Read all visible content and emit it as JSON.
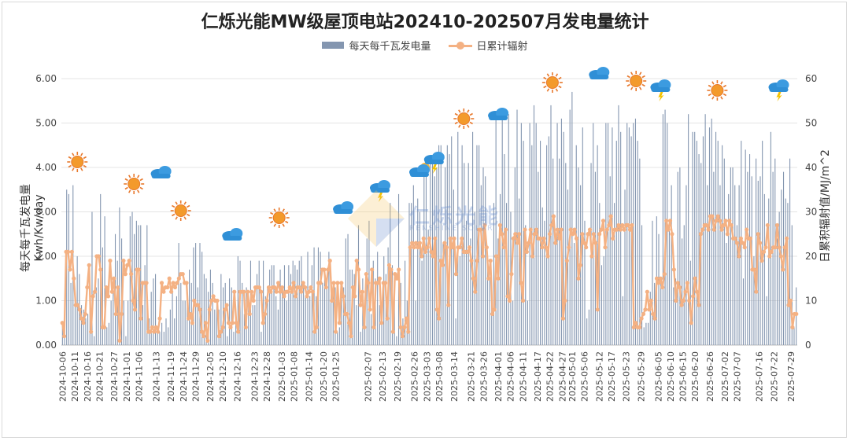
{
  "chart_data": {
    "type": "bar+line",
    "title": "仁烁光能MW级屋顶电站202410-202507月发电量统计",
    "legend": [
      "每天每千瓦发电量",
      "日累计辐射"
    ],
    "legend_position": "top",
    "ylabel_left": "每天每千瓦发电量 Kwh/Kw/day",
    "ylabel_left_line1": "每天每千瓦发电量",
    "ylabel_left_line2": "Kwh/Kw/day",
    "ylabel_right": "日累积辐射值/MJ/m^2",
    "ylim_left": [
      0,
      6
    ],
    "ylim_right": [
      0,
      60
    ],
    "yticks_left": [
      "0.00",
      "1.00",
      "2.00",
      "3.00",
      "4.00",
      "5.00",
      "6.00"
    ],
    "yticks_right": [
      "0",
      "10",
      "20",
      "30",
      "40",
      "50",
      "60"
    ],
    "x_start": "2024-10-06",
    "x_end": "2025-07-31",
    "x_tick_labels": [
      "2024-10-06",
      "2024-10-11",
      "2024-10-16",
      "2024-10-21",
      "2024-10-27",
      "2024-11-01",
      "2024-11-06",
      "2024-11-13",
      "2024-11-19",
      "2024-11-24",
      "2024-11-29",
      "2024-12-05",
      "2024-12-10",
      "2024-12-16",
      "2024-12-23",
      "2024-12-28",
      "2025-01-03",
      "2025-01-08",
      "2025-01-14",
      "2025-01-20",
      "2025-01-25",
      "2025-02-07",
      "2025-02-13",
      "2025-02-19",
      "2025-02-26",
      "2025-03-03",
      "2025-03-08",
      "2025-03-14",
      "2025-03-21",
      "2025-03-26",
      "2025-04-01",
      "2025-04-06",
      "2025-04-11",
      "2025-04-17",
      "2025-04-22",
      "2025-04-27",
      "2025-05-01",
      "2025-05-06",
      "2025-05-12",
      "2025-05-17",
      "2025-05-23",
      "2025-05-29",
      "2025-06-05",
      "2025-06-10",
      "2025-06-15",
      "2025-06-20",
      "2025-06-26",
      "2025-07-02",
      "2025-07-07",
      "2025-07-16",
      "2025-07-22",
      "2025-07-29"
    ],
    "bar_series": {
      "name": "每天每千瓦发电量",
      "color": "#8496b0",
      "values": [
        0.5,
        0.3,
        3.5,
        3.4,
        1.4,
        3.6,
        1.0,
        2.0,
        1.6,
        0.9,
        0.8,
        0.6,
        0.7,
        1.1,
        3.0,
        0.2,
        1.3,
        1.5,
        3.4,
        2.2,
        2.9,
        0.4,
        0.5,
        1.0,
        1.2,
        2.5,
        1.9,
        3.1,
        2.4,
        1.0,
        0.2,
        1.0,
        2.9,
        3.0,
        2.5,
        2.8,
        2.7,
        2.7,
        0.9,
        1.8,
        2.7,
        0.6,
        1.2,
        1.5,
        1.6,
        0.3,
        0.3,
        0.5,
        0.3,
        0.6,
        0.4,
        0.8,
        1.3,
        0.6,
        1.1,
        2.3,
        1.4,
        1.0,
        1.0,
        1.2,
        1.7,
        1.4,
        2.2,
        2.3,
        1.3,
        2.3,
        2.1,
        1.6,
        1.5,
        1.2,
        1.7,
        1.4,
        0.8,
        1.0,
        0.8,
        1.6,
        1.3,
        1.4,
        0.2,
        1.5,
        1.3,
        0.3,
        0.5,
        2.0,
        1.9,
        1.4,
        0.7,
        1.3,
        1.0,
        1.9,
        0.9,
        0.9,
        1.6,
        1.9,
        0.3,
        1.9,
        1.1,
        1.3,
        1.7,
        1.8,
        1.8,
        1.1,
        0.8,
        1.7,
        1.3,
        1.8,
        1.0,
        1.8,
        1.6,
        1.9,
        1.8,
        1.7,
        1.9,
        2.0,
        1.4,
        1.1,
        2.1,
        1.1,
        1.8,
        2.2,
        1.1,
        2.2,
        2.1,
        1.4,
        1.6,
        1.4,
        2.1,
        1.3,
        1.2,
        1.3,
        0.3,
        0.4,
        1.2,
        1.3,
        2.4,
        2.5,
        1.7,
        1.7,
        1.6,
        0.9,
        2.7,
        0.3,
        1.5,
        0.6,
        2.4,
        2.8,
        0.7,
        1.9,
        1.5,
        2.1,
        0.9,
        0.6,
        2.0,
        1.6,
        2.2,
        3.2,
        1.8,
        1.5,
        0.2,
        3.4,
        1.4,
        0.6,
        1.9,
        1.0,
        3.2,
        3.2,
        3.6,
        1.0,
        3.3,
        3.0,
        1.9,
        3.8,
        3.9,
        2.6,
        4.1,
        4.2,
        3.8,
        4.0,
        4.5,
        4.5,
        2.3,
        4.0,
        4.5,
        4.3,
        4.7,
        3.5,
        0.6,
        4.8,
        2.0,
        4.5,
        4.1,
        2.8,
        4.1,
        2.4,
        4.8,
        3.0,
        4.5,
        4.5,
        3.6,
        4.0,
        3.8,
        2.0,
        1.5,
        1.2,
        3.2,
        5.2,
        2.4,
        3.4,
        5.1,
        4.3,
        3.2,
        5.2,
        3.0,
        1.0,
        4.0,
        5.3,
        3.3,
        5.0,
        4.6,
        2.7,
        1.0,
        5.0,
        4.5,
        5.4,
        5.0,
        3.9,
        4.6,
        3.1,
        2.8,
        4.5,
        4.7,
        5.4,
        4.2,
        2.4,
        5.0,
        4.2,
        5.1,
        4.8,
        4.1,
        3.5,
        5.3,
        5.7,
        2.3,
        4.5,
        4.0,
        3.6,
        4.9,
        2.8,
        0.6,
        0.8,
        4.1,
        5.0,
        3.9,
        4.5,
        3.2,
        1.8,
        2.0,
        5.0,
        5.0,
        3.8,
        4.9,
        3.2,
        4.6,
        5.4,
        4.8,
        1.1,
        3.5,
        5.0,
        4.9,
        4.7,
        5.0,
        5.1,
        4.6,
        4.2,
        2.7,
        0.4,
        0.5,
        0.5,
        1.2,
        2.8,
        1.4,
        2.9,
        2.5,
        1.5,
        5.2,
        5.3,
        5.0,
        2.7,
        3.6,
        1.3,
        1.5,
        3.9,
        4.0,
        2.4,
        2.7,
        3.6,
        5.2,
        1.9,
        4.8,
        4.8,
        4.6,
        4.3,
        4.1,
        4.7,
        5.2,
        3.6,
        4.9,
        5.1,
        3.9,
        4.8,
        4.6,
        3.6,
        4.5,
        4.2,
        2.3,
        3.4,
        4.0,
        4.0,
        3.6,
        2.7,
        3.6,
        4.6,
        1.5,
        4.4,
        3.9,
        4.3,
        3.8,
        2.0,
        4.2,
        3.7,
        3.8,
        4.6,
        3.4,
        1.1,
        3.3,
        4.8,
        3.9,
        4.2,
        2.4,
        3.0,
        3.5,
        3.9,
        3.3,
        3.2,
        4.2,
        2.7,
        0.4,
        1.3
      ]
    },
    "line_series": {
      "name": "日累计辐射",
      "color": "#f4b183",
      "values": [
        5,
        2,
        21,
        21,
        17,
        21,
        15,
        9,
        9,
        8,
        6,
        5,
        7,
        13,
        18,
        3,
        11,
        12,
        20,
        20,
        17,
        4,
        4,
        13,
        11,
        19,
        12,
        15,
        7,
        13,
        1,
        7,
        19,
        16,
        18,
        19,
        16,
        10,
        8,
        17,
        17,
        6,
        14,
        14,
        14,
        3,
        3,
        4,
        3,
        4,
        3,
        6,
        14,
        12,
        13,
        13,
        15,
        12,
        14,
        13,
        14,
        15,
        16,
        16,
        14,
        14,
        6,
        7,
        5,
        10,
        9,
        9,
        8,
        3,
        2,
        5,
        1,
        8,
        10,
        11,
        10,
        10,
        2,
        3,
        4,
        8,
        9,
        5,
        4,
        5,
        12,
        5,
        3,
        12,
        12,
        12,
        4,
        12,
        7,
        12,
        10,
        13,
        13,
        13,
        12,
        5,
        7,
        10,
        13,
        12,
        13,
        13,
        12,
        14,
        12,
        13,
        11,
        12,
        12,
        13,
        12,
        14,
        11,
        13,
        13,
        12,
        14,
        13,
        11,
        12,
        13,
        12,
        3,
        4,
        14,
        14,
        17,
        17,
        13,
        17,
        19,
        10,
        14,
        3,
        14,
        5,
        14,
        11,
        7,
        7,
        5,
        2,
        13,
        11,
        19,
        17,
        9,
        12,
        4,
        16,
        14,
        8,
        17,
        4,
        14,
        14,
        15,
        5,
        14,
        14,
        6,
        18,
        17,
        3,
        16,
        15,
        17,
        4,
        2,
        4,
        6,
        3,
        22,
        23,
        22,
        23,
        22,
        23,
        20,
        24,
        21,
        22,
        24,
        21,
        20,
        24,
        8,
        6,
        19,
        18,
        23,
        22,
        9,
        24,
        22,
        24,
        16,
        22,
        22,
        24,
        21,
        21,
        21,
        22,
        19,
        15,
        12,
        19,
        26,
        26,
        20,
        27,
        22,
        15,
        19,
        7,
        8,
        20,
        15,
        27,
        25,
        22,
        26,
        11,
        10,
        16,
        24,
        25,
        23,
        25,
        14,
        10,
        26,
        21,
        23,
        26,
        20,
        25,
        26,
        24,
        24,
        22,
        24,
        22,
        20,
        25,
        27,
        29,
        23,
        26,
        24,
        26,
        6,
        10,
        19,
        22,
        26,
        25,
        26,
        24,
        15,
        18,
        25,
        23,
        22,
        25,
        26,
        20,
        25,
        23,
        8,
        25,
        26,
        28,
        22,
        26,
        27,
        29,
        24,
        26,
        26,
        27,
        26,
        27,
        26,
        27,
        27,
        26,
        27,
        4,
        5,
        4,
        4,
        6,
        7,
        8,
        12,
        8,
        10,
        7,
        6,
        15,
        14,
        15,
        13,
        16,
        28,
        26,
        28,
        25,
        17,
        10,
        14,
        13,
        9,
        10,
        12,
        14,
        10,
        5,
        11,
        15,
        12,
        9,
        25,
        26,
        27,
        27,
        26,
        29,
        29,
        26,
        28,
        29,
        28,
        26,
        27,
        28,
        25,
        28,
        27,
        24,
        24,
        23,
        20,
        24,
        23,
        22,
        26,
        24,
        24,
        17,
        17,
        12,
        25,
        23,
        19,
        21,
        22,
        27,
        20,
        21,
        22,
        22,
        27,
        22,
        20,
        17,
        22,
        24,
        9,
        10,
        4,
        7,
        7
      ]
    },
    "weather_icons": [
      {
        "date": "2024-10-12",
        "type": "sun"
      },
      {
        "date": "2024-11-04",
        "type": "sun"
      },
      {
        "date": "2024-11-15",
        "type": "cloud"
      },
      {
        "date": "2024-11-23",
        "type": "sun"
      },
      {
        "date": "2024-12-14",
        "type": "cloud"
      },
      {
        "date": "2025-01-02",
        "type": "sun"
      },
      {
        "date": "2025-01-28",
        "type": "cloud"
      },
      {
        "date": "2025-02-12",
        "type": "storm"
      },
      {
        "date": "2025-02-28",
        "type": "partly-sunny"
      },
      {
        "date": "2025-03-06",
        "type": "storm"
      },
      {
        "date": "2025-03-18",
        "type": "sun"
      },
      {
        "date": "2025-04-01",
        "type": "cloud"
      },
      {
        "date": "2025-04-23",
        "type": "sun"
      },
      {
        "date": "2025-05-12",
        "type": "cloud"
      },
      {
        "date": "2025-05-27",
        "type": "sun"
      },
      {
        "date": "2025-06-06",
        "type": "storm"
      },
      {
        "date": "2025-06-29",
        "type": "sun"
      },
      {
        "date": "2025-07-24",
        "type": "storm"
      }
    ],
    "watermark": {
      "cn": "仁烁光能",
      "en": "RENSHINE SOLAR"
    }
  }
}
